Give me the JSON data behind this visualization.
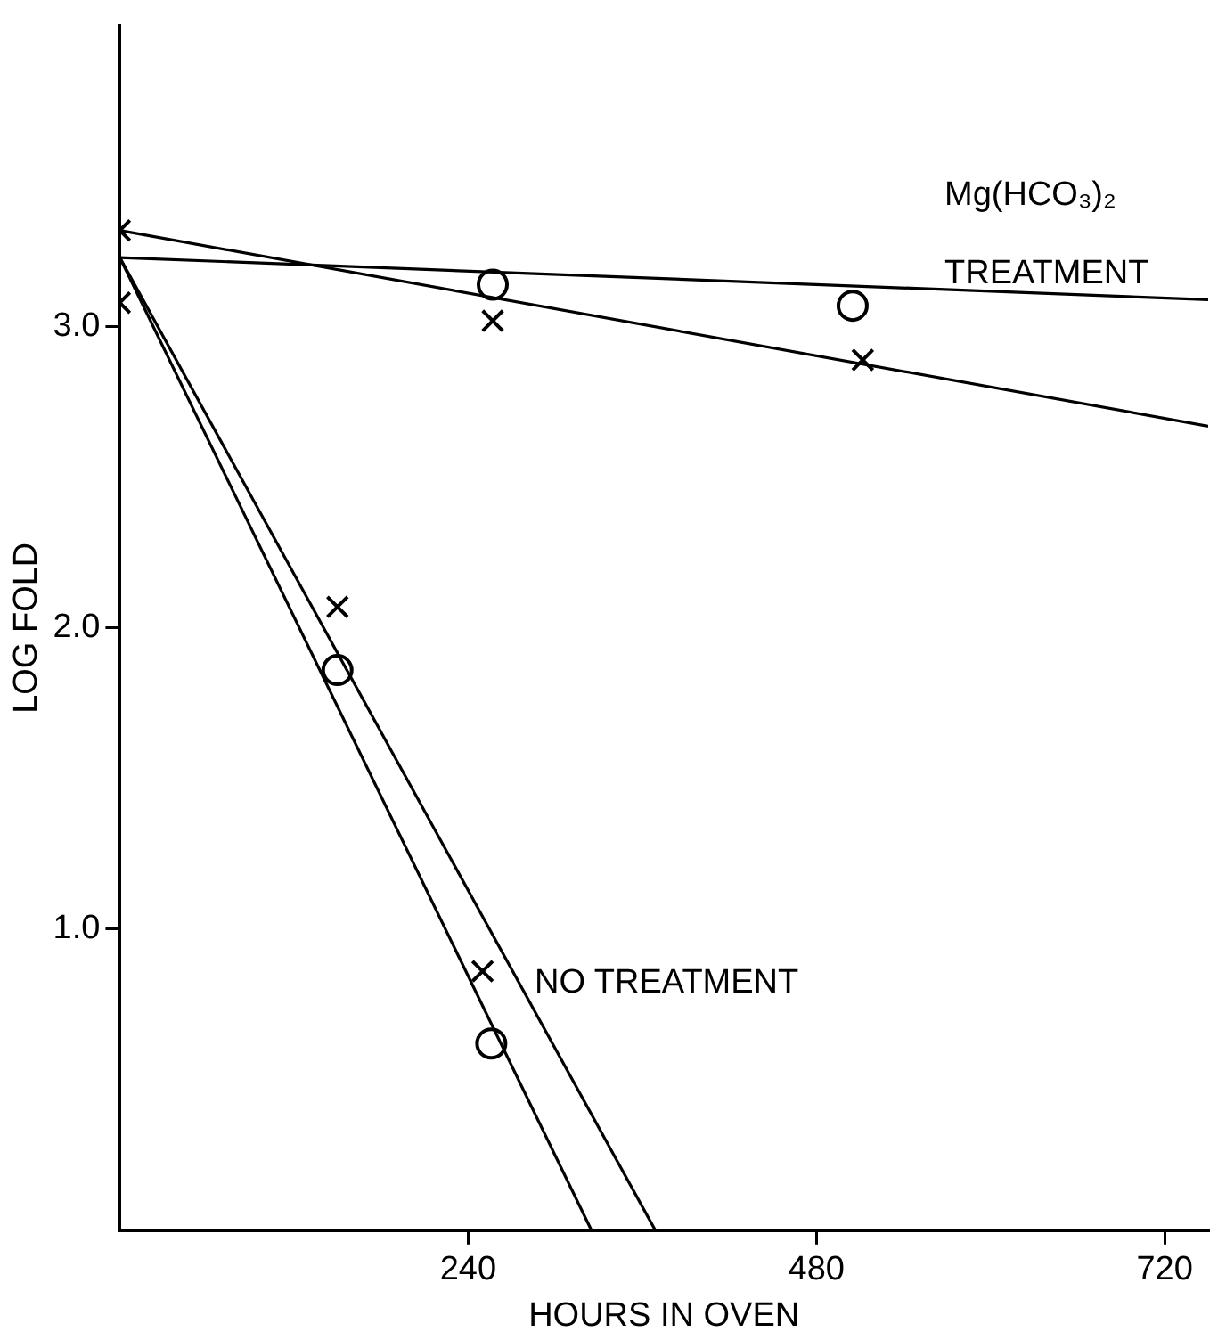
{
  "chart_data": {
    "type": "scatter",
    "xlabel": "HOURS IN OVEN",
    "ylabel": "LOG FOLD",
    "xlim": [
      0,
      750
    ],
    "ylim": [
      0,
      4
    ],
    "xticks": [
      240,
      480,
      720
    ],
    "yticks": [
      {
        "value": 1,
        "label": "1.0"
      },
      {
        "value": 2,
        "label": "2.0"
      },
      {
        "value": 3,
        "label": "3.0"
      }
    ],
    "grid": false,
    "legend": false,
    "series": [
      {
        "marker": "circle",
        "color": "#000000",
        "x": [
          150,
          257,
          256,
          505
        ],
        "values": [
          1.86,
          3.14,
          0.62,
          3.07
        ]
      },
      {
        "marker": "cross",
        "color": "#000000",
        "x": [
          0,
          0,
          150,
          250,
          257,
          512
        ],
        "values": [
          3.32,
          3.08,
          2.07,
          0.86,
          3.02,
          2.89
        ]
      },
      {
        "type": "line",
        "marker": "none",
        "color": "#000000",
        "x": [
          0,
          750
        ],
        "values": [
          3.23,
          3.09
        ]
      },
      {
        "type": "line",
        "marker": "none",
        "color": "#000000",
        "x": [
          0,
          750
        ],
        "values": [
          3.32,
          2.67
        ]
      },
      {
        "type": "line",
        "marker": "none",
        "color": "#000000",
        "x": [
          0,
          325
        ],
        "values": [
          3.23,
          0
        ]
      },
      {
        "type": "line",
        "marker": "none",
        "color": "#000000",
        "x": [
          0,
          369
        ],
        "values": [
          3.23,
          0
        ]
      }
    ],
    "annotations": [
      "Mg(HCO₃)₂",
      "TREATMENT",
      "NO TREATMENT"
    ]
  }
}
